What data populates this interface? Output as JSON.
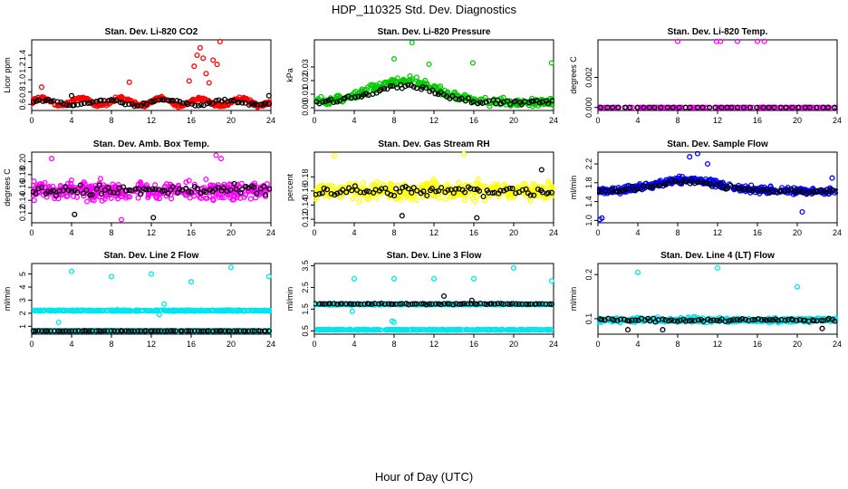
{
  "title": "HDP_110325  Std. Dev. Diagnostics",
  "xlabel": "Hour of Day (UTC)",
  "chart_data": [
    {
      "type": "scatter",
      "title": "Stan. Dev. Li-820 CO2",
      "ylabel": "Licor ppm",
      "xlim": [
        0,
        24
      ],
      "ylim": [
        0.5,
        1.65
      ],
      "xticks": [
        0,
        4,
        8,
        12,
        16,
        20,
        24
      ],
      "yticks": [
        0.6,
        0.8,
        1.0,
        1.2,
        1.4
      ],
      "series": [
        {
          "color": "#ff0000",
          "base": 0.64,
          "amp": 0.06,
          "period": 4,
          "noise": 0.05,
          "n": 320,
          "outliers": [
            [
              1,
              0.88
            ],
            [
              9.8,
              0.96
            ],
            [
              15.8,
              0.98
            ],
            [
              16.3,
              1.22
            ],
            [
              16.6,
              1.4
            ],
            [
              16.9,
              1.52
            ],
            [
              17.2,
              1.35
            ],
            [
              17.5,
              1.1
            ],
            [
              18.2,
              1.32
            ],
            [
              18.6,
              1.25
            ],
            [
              18.9,
              1.62
            ],
            [
              17.8,
              0.95
            ]
          ]
        },
        {
          "color": "#000000",
          "base": 0.63,
          "amp": 0.04,
          "period": 6,
          "noise": 0.04,
          "n": 80,
          "outliers": [
            [
              23.8,
              0.74
            ],
            [
              4.0,
              0.74
            ]
          ]
        }
      ]
    },
    {
      "type": "scatter",
      "title": "Stan. Dev. Li-820 Pressure",
      "ylabel": "kPa",
      "xlim": [
        0,
        24
      ],
      "ylim": [
        -0.002,
        0.05
      ],
      "xticks": [
        0,
        4,
        8,
        12,
        16,
        20,
        24
      ],
      "yticks": [
        0.0,
        0.01,
        0.02,
        0.03
      ],
      "series": [
        {
          "color": "#00cc00",
          "base": 0.004,
          "hump": 0.016,
          "noise": 0.005,
          "n": 320,
          "outliers": [
            [
              9.8,
              0.048
            ],
            [
              15.9,
              0.033
            ],
            [
              23.8,
              0.033
            ],
            [
              8.0,
              0.036
            ],
            [
              11.5,
              0.032
            ]
          ]
        },
        {
          "color": "#000000",
          "base": 0.004,
          "hump": 0.012,
          "noise": 0.003,
          "n": 80,
          "outliers": []
        }
      ]
    },
    {
      "type": "scatter",
      "title": "Stan. Dev. Li-820 Temp.",
      "ylabel": "degrees C",
      "xlim": [
        0,
        24
      ],
      "ylim": [
        -0.0002,
        0.0045
      ],
      "xticks": [
        0,
        4,
        8,
        12,
        16,
        20,
        24
      ],
      "yticks": [
        0.0,
        0.002
      ],
      "series": [
        {
          "color": "#ff00ff",
          "base": 0.0,
          "noise": 0.0,
          "n": 160,
          "outliers": [
            [
              8.0,
              0.0044
            ],
            [
              11.9,
              0.0044
            ],
            [
              12.3,
              0.0044
            ],
            [
              14.0,
              0.0044
            ],
            [
              16.0,
              0.0044
            ],
            [
              16.7,
              0.0044
            ]
          ]
        },
        {
          "color": "#000000",
          "base": 0.0,
          "noise": 0.0,
          "n": 40,
          "outliers": []
        }
      ]
    },
    {
      "type": "scatter",
      "title": "Stan. Dev. Amb. Box Temp.",
      "ylabel": "degrees C",
      "xlim": [
        0,
        24
      ],
      "ylim": [
        0.105,
        0.215
      ],
      "xticks": [
        0,
        4,
        8,
        12,
        16,
        20,
        24
      ],
      "yticks": [
        0.12,
        0.14,
        0.16,
        0.18,
        0.2
      ],
      "series": [
        {
          "color": "#ff00ff",
          "base": 0.155,
          "noise": 0.022,
          "n": 420,
          "outliers": [
            [
              2,
              0.205
            ],
            [
              9,
              0.11
            ],
            [
              19,
              0.205
            ],
            [
              18.5,
              0.21
            ]
          ]
        },
        {
          "color": "#000000",
          "base": 0.155,
          "noise": 0.015,
          "n": 80,
          "outliers": [
            [
              12.2,
              0.113
            ],
            [
              4.3,
              0.118
            ]
          ]
        }
      ]
    },
    {
      "type": "scatter",
      "title": "Stan. Dev. Gas Stream RH",
      "ylabel": "percent",
      "xlim": [
        0,
        24
      ],
      "ylim": [
        0.115,
        0.215
      ],
      "xticks": [
        0,
        4,
        8,
        12,
        16,
        20,
        24
      ],
      "yticks": [
        0.12,
        0.14,
        0.16,
        0.18
      ],
      "series": [
        {
          "color": "#ffff00",
          "base": 0.16,
          "noise": 0.02,
          "n": 420,
          "outliers": [
            [
              2,
              0.21
            ],
            [
              15,
              0.212
            ]
          ]
        },
        {
          "color": "#000000",
          "base": 0.16,
          "noise": 0.012,
          "n": 80,
          "outliers": [
            [
              16.3,
              0.122
            ],
            [
              8.8,
              0.125
            ],
            [
              22.8,
              0.19
            ]
          ]
        }
      ]
    },
    {
      "type": "scatter",
      "title": "Stan. Dev. Sample Flow",
      "ylabel": "ml/min",
      "xlim": [
        0,
        24
      ],
      "ylim": [
        0.95,
        2.45
      ],
      "xticks": [
        0,
        4,
        8,
        12,
        16,
        20,
        24
      ],
      "yticks": [
        1.0,
        1.4,
        1.8,
        2.2
      ],
      "series": [
        {
          "color": "#0000ff",
          "base": 1.62,
          "hump": 0.25,
          "noise": 0.12,
          "n": 420,
          "outliers": [
            [
              0.2,
              1.02
            ],
            [
              0.4,
              1.05
            ],
            [
              9.2,
              2.35
            ],
            [
              10.0,
              2.42
            ],
            [
              11.0,
              2.2
            ],
            [
              20.5,
              1.18
            ],
            [
              23.5,
              1.9
            ]
          ]
        },
        {
          "color": "#000000",
          "base": 1.62,
          "hump": 0.2,
          "noise": 0.08,
          "n": 80,
          "outliers": []
        }
      ]
    },
    {
      "type": "scatter",
      "title": "Stan. Dev. Line 2 Flow",
      "ylabel": "ml/min",
      "xlim": [
        0,
        24
      ],
      "ylim": [
        0.4,
        5.8
      ],
      "xticks": [
        0,
        4,
        8,
        12,
        16,
        20,
        24
      ],
      "yticks": [
        1,
        2,
        3,
        4,
        5
      ],
      "series": [
        {
          "color": "#00e5ee",
          "base": 2.2,
          "noise": 0.07,
          "n": 380,
          "outliers": [
            [
              4.0,
              5.2
            ],
            [
              8.0,
              4.8
            ],
            [
              12.0,
              5.0
            ],
            [
              16.0,
              4.4
            ],
            [
              20.0,
              5.5
            ],
            [
              23.8,
              4.8
            ],
            [
              2.7,
              1.3
            ],
            [
              12.8,
              1.9
            ],
            [
              13.3,
              2.7
            ]
          ]
        },
        {
          "color": "#00e5ee",
          "base": 0.65,
          "noise": 0.03,
          "n": 300,
          "outliers": []
        },
        {
          "color": "#000000",
          "base": 0.65,
          "noise": 0.02,
          "n": 80,
          "outliers": []
        }
      ]
    },
    {
      "type": "scatter",
      "title": "Stan. Dev. Line 3 Flow",
      "ylabel": "ml/min",
      "xlim": [
        0,
        24
      ],
      "ylim": [
        0.35,
        3.6
      ],
      "xticks": [
        0,
        4,
        8,
        12,
        16,
        20,
        24
      ],
      "yticks": [
        0.5,
        1.5,
        2.5,
        3.5
      ],
      "series": [
        {
          "color": "#00e5ee",
          "base": 1.72,
          "noise": 0.04,
          "n": 380,
          "outliers": [
            [
              4.0,
              2.9
            ],
            [
              8.0,
              2.9
            ],
            [
              12.0,
              2.9
            ],
            [
              16.0,
              2.9
            ],
            [
              20.0,
              3.4
            ],
            [
              23.8,
              2.8
            ],
            [
              3.8,
              1.4
            ],
            [
              8.0,
              0.9
            ]
          ]
        },
        {
          "color": "#00e5ee",
          "base": 0.55,
          "noise": 0.03,
          "n": 300,
          "outliers": [
            [
              7.8,
              0.95
            ]
          ]
        },
        {
          "color": "#000000",
          "base": 1.74,
          "noise": 0.04,
          "n": 80,
          "outliers": [
            [
              13.0,
              2.1
            ],
            [
              15.8,
              1.9
            ]
          ]
        }
      ]
    },
    {
      "type": "scatter",
      "title": "Stan. Dev. Line 4 (LT) Flow",
      "ylabel": "ml/min",
      "xlim": [
        0,
        24
      ],
      "ylim": [
        0.065,
        0.225
      ],
      "xticks": [
        0,
        4,
        8,
        12,
        16,
        20,
        24
      ],
      "yticks": [
        0.1,
        0.2
      ],
      "series": [
        {
          "color": "#00e5ee",
          "base": 0.097,
          "noise": 0.009,
          "n": 420,
          "outliers": [
            [
              4.0,
              0.205
            ],
            [
              12.0,
              0.215
            ],
            [
              20.0,
              0.172
            ]
          ]
        },
        {
          "color": "#000000",
          "base": 0.097,
          "noise": 0.006,
          "n": 80,
          "outliers": [
            [
              3.0,
              0.075
            ],
            [
              6.5,
              0.075
            ],
            [
              22.5,
              0.078
            ]
          ]
        }
      ]
    }
  ]
}
